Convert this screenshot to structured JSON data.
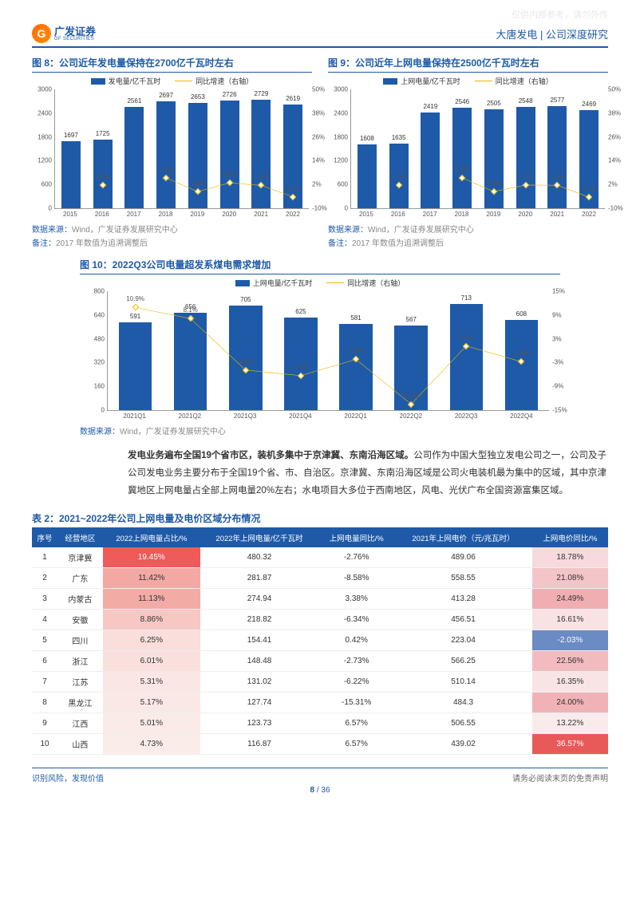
{
  "watermark": "仅供内部参考，请勿外传",
  "header": {
    "logo_cn": "广发证券",
    "logo_en": "GF SECURITIES",
    "doc_title": "大唐发电 | 公司深度研究"
  },
  "chart8": {
    "title": "图 8：公司近年发电量保持在2700亿千瓦时左右",
    "legend_bar": "发电量/亿千瓦时",
    "legend_line": "同比增速（右轴）",
    "categories": [
      "2015",
      "2016",
      "2017",
      "2018",
      "2019",
      "2020",
      "2021",
      "2022"
    ],
    "values": [
      1697,
      1725,
      2561,
      2697,
      2653,
      2726,
      2729,
      2619
    ],
    "growth": [
      null,
      1.6,
      null,
      5.3,
      -1.6,
      2.8,
      1.5,
      -4.2
    ],
    "growth_labels": [
      "",
      "1.6%",
      "",
      "5.3%",
      "-1.6%",
      "2.8%",
      "1.5%",
      "-4.2%"
    ],
    "y_left": {
      "min": 0,
      "max": 3000,
      "ticks": [
        0,
        600,
        1200,
        1800,
        2400,
        3000
      ]
    },
    "y_right": {
      "min": -10,
      "max": 50,
      "ticks": [
        -10,
        2,
        14,
        26,
        38,
        50
      ]
    },
    "bar_color": "#1e5aa8",
    "line_color": "#e6b800",
    "source": "Wind，广发证券发展研究中心",
    "note": "2017 年数值为追溯调整后"
  },
  "chart9": {
    "title": "图 9：公司近年上网电量保持在2500亿千瓦时左右",
    "legend_bar": "上网电量/亿千瓦时",
    "legend_line": "同比增速（右轴）",
    "categories": [
      "2015",
      "2016",
      "2017",
      "2018",
      "2019",
      "2020",
      "2021",
      "2022"
    ],
    "values": [
      1608,
      1635,
      2419,
      2546,
      2505,
      2548,
      2577,
      2469
    ],
    "growth": [
      null,
      1.7,
      null,
      5.3,
      -1.6,
      1.7,
      1.6,
      -4.4
    ],
    "growth_labels": [
      "",
      "1.7%",
      "",
      "5.3%",
      "-1.6%",
      "1.7%",
      "1.6%",
      "-4.4%"
    ],
    "y_left": {
      "min": 0,
      "max": 3000,
      "ticks": [
        0,
        600,
        1200,
        1800,
        2400,
        3000
      ]
    },
    "y_right": {
      "min": -10,
      "max": 50,
      "ticks": [
        -10,
        2,
        14,
        26,
        38,
        50
      ]
    },
    "bar_color": "#1e5aa8",
    "line_color": "#e6b800",
    "source": "Wind，广发证券发展研究中心",
    "note": "2017 年数值为追溯调整后"
  },
  "chart10": {
    "title": "图 10：2022Q3公司电量超发系煤电需求增加",
    "legend_bar": "上网电量/亿千瓦时",
    "legend_line": "同比增速（右轴）",
    "categories": [
      "2021Q1",
      "2021Q2",
      "2021Q3",
      "2021Q4",
      "2022Q1",
      "2022Q2",
      "2022Q3",
      "2022Q4"
    ],
    "values": [
      591,
      656,
      705,
      625,
      581,
      567,
      713,
      608
    ],
    "growth": [
      10.9,
      8.1,
      -4.9,
      -6.3,
      -2.2,
      -13.5,
      1.2,
      -2.8
    ],
    "growth_labels": [
      "10.9%",
      "8.1%",
      "-4.9%",
      "-6.3%",
      "-2.2%",
      "-13.5%",
      "1.2%",
      "-2.8%"
    ],
    "y_left": {
      "min": 0,
      "max": 800,
      "ticks": [
        0,
        160,
        320,
        480,
        640,
        800
      ]
    },
    "y_right": {
      "min": -15,
      "max": 15,
      "ticks": [
        -15,
        -9,
        -3,
        3,
        9,
        15
      ]
    },
    "bar_color": "#1e5aa8",
    "line_color": "#e6b800",
    "source": "Wind，广发证券发展研究中心"
  },
  "body": {
    "bold": "发电业务遍布全国19个省市区，装机多集中于京津冀、东南沿海区域。",
    "rest": "公司作为中国大型独立发电公司之一，公司及子公司发电业务主要分布于全国19个省、市、自治区。京津冀、东南沿海区域是公司火电装机最为集中的区域，其中京津冀地区上网电量占全部上网电量20%左右；水电项目大多位于西南地区，风电、光伏广布全国资源富集区域。"
  },
  "table2": {
    "title": "表 2：2021~2022年公司上网电量及电价区域分布情况",
    "columns": [
      "序号",
      "经营地区",
      "2022上网电量占比/%",
      "2022年上网电量/亿千瓦时",
      "上网电量同比/%",
      "2021年上网电价（元/兆瓦时）",
      "上网电价同比/%"
    ],
    "rows": [
      {
        "n": 1,
        "region": "京津冀",
        "share": "19.45%",
        "share_bg": "#ef5a5a",
        "vol": "480.32",
        "yoy": "-2.76%",
        "price": "489.06",
        "pyoy": "18.78%",
        "pyoy_bg": "#f7dadd"
      },
      {
        "n": 2,
        "region": "广东",
        "share": "11.42%",
        "share_bg": "#f3a8a3",
        "vol": "281.87",
        "yoy": "-8.58%",
        "price": "558.55",
        "pyoy": "21.08%",
        "pyoy_bg": "#f3c4c8"
      },
      {
        "n": 3,
        "region": "内蒙古",
        "share": "11.13%",
        "share_bg": "#f3aba6",
        "vol": "274.94",
        "yoy": "3.38%",
        "price": "413.28",
        "pyoy": "24.49%",
        "pyoy_bg": "#f0aeb3"
      },
      {
        "n": 4,
        "region": "安徽",
        "share": "8.86%",
        "share_bg": "#f6c7c3",
        "vol": "218.82",
        "yoy": "-6.34%",
        "price": "456.51",
        "pyoy": "16.61%",
        "pyoy_bg": "#f8e2e4"
      },
      {
        "n": 5,
        "region": "四川",
        "share": "6.25%",
        "share_bg": "#f9dedb",
        "vol": "154.41",
        "yoy": "0.42%",
        "price": "223.04",
        "pyoy": "-2.03%",
        "pyoy_bg": "#6b8bc4"
      },
      {
        "n": 6,
        "region": "浙江",
        "share": "6.01%",
        "share_bg": "#f9e0dd",
        "vol": "148.48",
        "yoy": "-2.73%",
        "price": "566.25",
        "pyoy": "22.56%",
        "pyoy_bg": "#f2bbc0"
      },
      {
        "n": 7,
        "region": "江苏",
        "share": "5.31%",
        "share_bg": "#fae7e5",
        "vol": "131.02",
        "yoy": "-6.22%",
        "price": "510.14",
        "pyoy": "16.35%",
        "pyoy_bg": "#f8e3e5"
      },
      {
        "n": 8,
        "region": "黑龙江",
        "share": "5.17%",
        "share_bg": "#fae8e6",
        "vol": "127.74",
        "yoy": "-15.31%",
        "price": "484.3",
        "pyoy": "24.00%",
        "pyoy_bg": "#f1b2b7"
      },
      {
        "n": 9,
        "region": "江西",
        "share": "5.01%",
        "share_bg": "#faeae8",
        "vol": "123.73",
        "yoy": "6.57%",
        "price": "506.55",
        "pyoy": "13.22%",
        "pyoy_bg": "#f9eaec"
      },
      {
        "n": 10,
        "region": "山西",
        "share": "4.73%",
        "share_bg": "#faece9",
        "vol": "116.87",
        "yoy": "6.57%",
        "price": "439.02",
        "pyoy": "36.57%",
        "pyoy_bg": "#e85a5a"
      }
    ]
  },
  "footer": {
    "left": "识别风险，发现价值",
    "right": "请务必阅读末页的免责声明",
    "page_current": "8",
    "page_total": "36"
  }
}
